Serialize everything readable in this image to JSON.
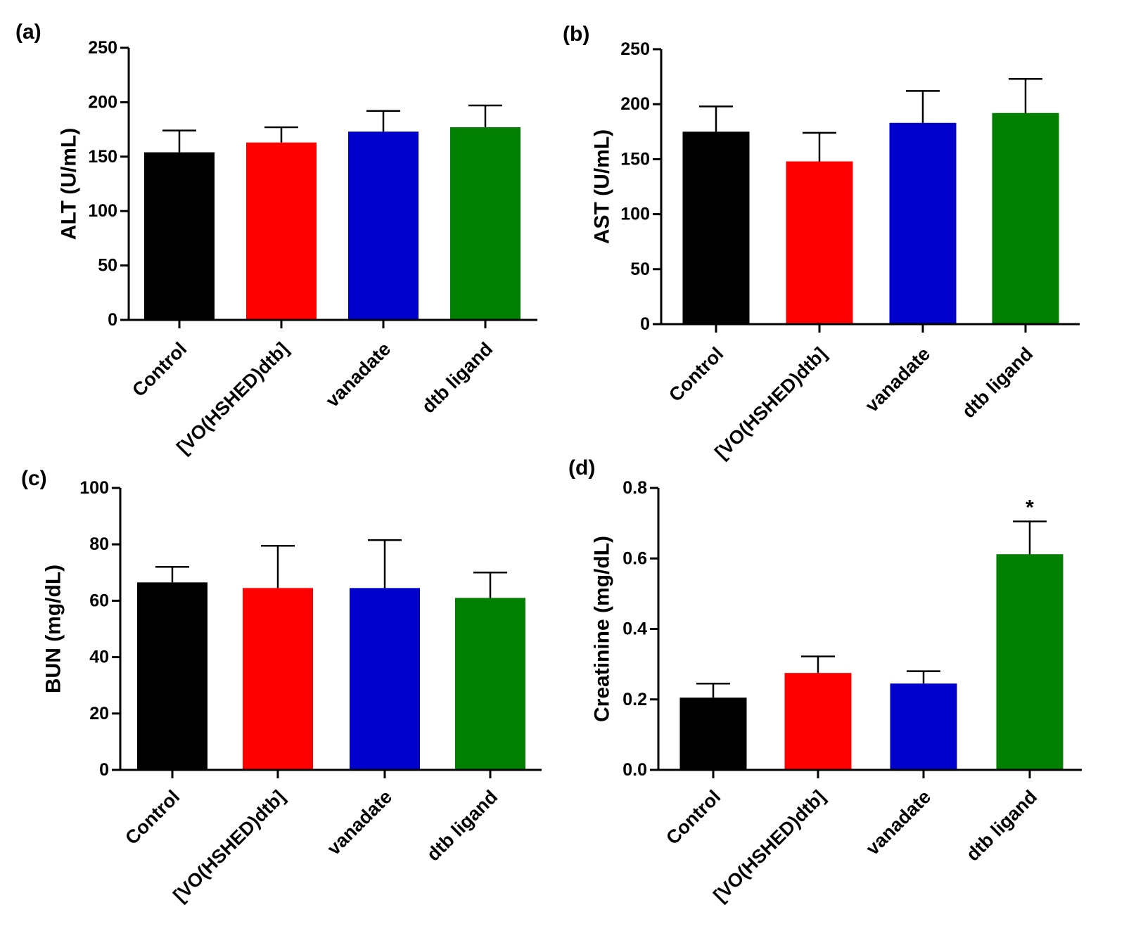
{
  "chart_data": [
    {
      "type": "bar",
      "panel": "(a)",
      "ylabel": "ALT (U/mL)",
      "ylim": [
        0,
        250
      ],
      "yticks": [
        0,
        50,
        100,
        150,
        200,
        250
      ],
      "categories": [
        "Control",
        "[VO(HSHED)dtb]",
        "vanadate",
        "dtb ligand"
      ],
      "values": [
        154,
        163,
        173,
        177
      ],
      "errors": [
        20,
        14,
        19,
        20
      ],
      "colors": [
        "#000000",
        "#ff0000",
        "#0000cc",
        "#007f00"
      ],
      "annotations": [
        "",
        "",
        "",
        ""
      ]
    },
    {
      "type": "bar",
      "panel": "(b)",
      "ylabel": "AST (U/mL)",
      "ylim": [
        0,
        250
      ],
      "yticks": [
        0,
        50,
        100,
        150,
        200,
        250
      ],
      "categories": [
        "Control",
        "[VO(HSHED)dtb]",
        "vanadate",
        "dtb ligand"
      ],
      "values": [
        175,
        148,
        183,
        192
      ],
      "errors": [
        23,
        26,
        29,
        31
      ],
      "colors": [
        "#000000",
        "#ff0000",
        "#0000cc",
        "#007f00"
      ],
      "annotations": [
        "",
        "",
        "",
        ""
      ]
    },
    {
      "type": "bar",
      "panel": "(c)",
      "ylabel": "BUN (mg/dL)",
      "ylim": [
        0,
        100
      ],
      "yticks": [
        0,
        20,
        40,
        60,
        80,
        100
      ],
      "categories": [
        "Control",
        "[VO(HSHED)dtb]",
        "vanadate",
        "dtb ligand"
      ],
      "values": [
        66.5,
        64.5,
        64.5,
        61
      ],
      "errors": [
        5.5,
        15,
        17,
        9
      ],
      "colors": [
        "#000000",
        "#ff0000",
        "#0000cc",
        "#007f00"
      ],
      "annotations": [
        "",
        "",
        "",
        ""
      ]
    },
    {
      "type": "bar",
      "panel": "(d)",
      "ylabel": "Creatinine (mg/dL)",
      "ylim": [
        0,
        0.8
      ],
      "yticks": [
        "0.0",
        "0.2",
        "0.4",
        "0.6",
        "0.8"
      ],
      "categories": [
        "Control",
        "[VO(HSHED)dtb]",
        "vanadate",
        "dtb ligand"
      ],
      "values": [
        0.205,
        0.275,
        0.245,
        0.612
      ],
      "errors": [
        0.04,
        0.047,
        0.035,
        0.093
      ],
      "colors": [
        "#000000",
        "#ff0000",
        "#0000cc",
        "#007f00"
      ],
      "annotations": [
        "",
        "",
        "",
        "*"
      ]
    }
  ]
}
